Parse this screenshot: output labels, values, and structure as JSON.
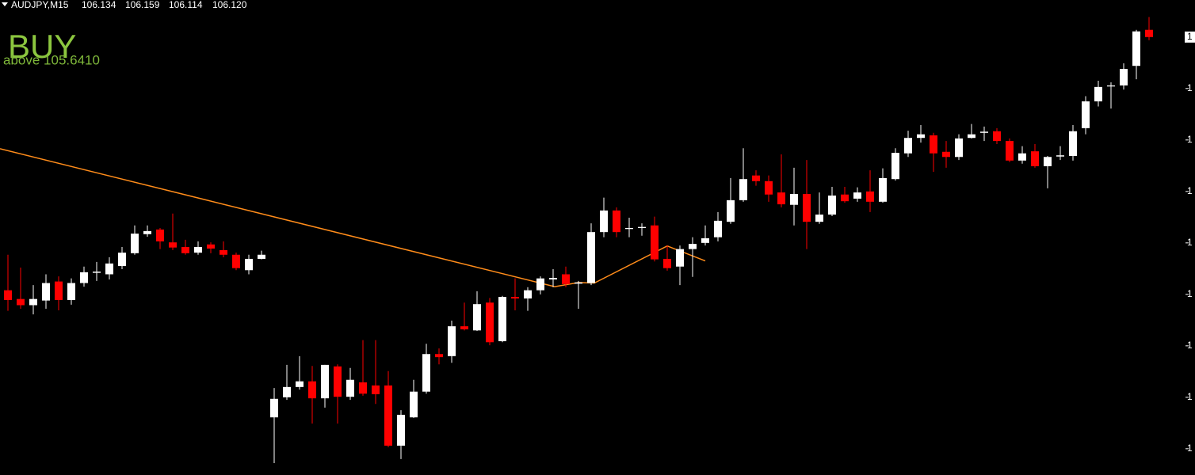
{
  "chart_data": {
    "type": "candlestick",
    "header": {
      "symbol": "AUDJPY,M15",
      "ohlc": [
        "106.134",
        "106.159",
        "106.114",
        "106.120"
      ]
    },
    "signal": {
      "text": "BUY",
      "color": "#8cc63f"
    },
    "annotation": {
      "text": "above 105.6410",
      "color": "#7fb83a"
    },
    "colors": {
      "up": "#ffffff",
      "down": "#ff0000",
      "doji": "#ffffff"
    },
    "open": [
      105.628,
      105.611,
      105.599,
      105.608,
      105.645,
      105.609,
      105.642,
      105.663,
      105.659,
      105.675,
      105.7,
      105.737,
      105.746,
      105.721,
      105.712,
      105.701,
      105.717,
      105.706,
      105.697,
      105.667,
      105.689,
      105.381,
      105.42,
      105.44,
      105.451,
      105.418,
      105.48,
      105.421,
      105.449,
      105.443,
      105.443,
      105.326,
      105.381,
      105.431,
      105.504,
      105.5,
      105.558,
      105.55,
      105.604,
      105.529,
      105.615,
      105.612,
      105.628,
      105.649,
      105.659,
      105.642,
      105.642,
      105.741,
      105.783,
      105.747,
      105.749,
      105.754,
      105.689,
      105.674,
      105.708,
      105.72,
      105.731,
      105.761,
      105.803,
      105.851,
      105.84,
      105.818,
      105.794,
      105.815,
      105.761,
      105.775,
      105.814,
      105.806,
      105.82,
      105.8,
      105.844,
      105.894,
      105.924,
      105.929,
      105.897,
      105.887,
      105.924,
      105.935,
      105.937,
      105.918,
      105.88,
      105.898,
      105.869,
      105.889,
      105.889,
      105.943,
      105.995,
      106.024,
      106.026,
      106.064,
      106.134
    ],
    "high": [
      105.697,
      105.672,
      105.638,
      105.659,
      105.655,
      105.651,
      105.674,
      105.683,
      105.692,
      105.712,
      105.754,
      105.754,
      105.749,
      105.777,
      105.726,
      105.723,
      105.721,
      105.723,
      105.701,
      105.697,
      105.705,
      105.438,
      105.483,
      105.5,
      105.481,
      105.483,
      105.484,
      105.477,
      105.531,
      105.531,
      105.471,
      105.395,
      105.454,
      105.524,
      105.515,
      105.569,
      105.604,
      105.626,
      105.613,
      105.617,
      105.651,
      105.634,
      105.655,
      105.669,
      105.674,
      105.646,
      105.758,
      105.808,
      105.789,
      105.769,
      105.758,
      105.771,
      105.715,
      105.715,
      105.731,
      105.754,
      105.78,
      105.846,
      105.904,
      105.861,
      105.851,
      105.892,
      105.866,
      105.881,
      105.818,
      105.829,
      105.829,
      105.828,
      105.861,
      105.865,
      105.904,
      105.938,
      105.949,
      105.934,
      105.918,
      105.931,
      105.951,
      105.946,
      105.943,
      105.923,
      105.908,
      105.912,
      105.889,
      105.908,
      105.949,
      106.005,
      106.035,
      106.032,
      106.069,
      106.134,
      106.159
    ],
    "low": [
      105.588,
      105.592,
      105.581,
      105.592,
      105.589,
      105.6,
      105.635,
      105.646,
      105.649,
      105.669,
      105.697,
      105.732,
      105.708,
      105.706,
      105.697,
      105.697,
      105.7,
      105.692,
      105.667,
      105.659,
      105.688,
      105.292,
      105.415,
      105.435,
      105.369,
      105.4,
      105.369,
      105.415,
      105.423,
      105.407,
      105.323,
      105.3,
      105.38,
      105.427,
      105.484,
      105.487,
      105.55,
      105.549,
      105.521,
      105.527,
      105.589,
      105.588,
      105.62,
      105.634,
      105.634,
      105.592,
      105.638,
      105.731,
      105.731,
      105.731,
      105.734,
      105.684,
      105.666,
      105.638,
      105.654,
      105.715,
      105.723,
      105.757,
      105.8,
      105.831,
      105.8,
      105.789,
      105.754,
      105.708,
      105.757,
      105.772,
      105.798,
      105.8,
      105.78,
      105.798,
      105.841,
      105.887,
      105.915,
      105.858,
      105.866,
      105.881,
      105.923,
      105.918,
      105.912,
      105.877,
      105.874,
      105.866,
      105.826,
      105.881,
      105.88,
      105.931,
      105.985,
      105.981,
      106.018,
      106.038,
      106.114
    ],
    "close": [
      105.609,
      105.599,
      105.611,
      105.642,
      105.609,
      105.642,
      105.663,
      105.663,
      105.68,
      105.701,
      105.738,
      105.743,
      105.723,
      105.711,
      105.7,
      105.712,
      105.709,
      105.697,
      105.671,
      105.689,
      105.697,
      105.417,
      105.44,
      105.451,
      105.418,
      105.483,
      105.421,
      105.454,
      105.427,
      105.426,
      105.326,
      105.386,
      105.431,
      105.504,
      105.498,
      105.558,
      105.552,
      105.601,
      105.527,
      105.615,
      105.612,
      105.628,
      105.651,
      105.652,
      105.64,
      105.642,
      105.741,
      105.783,
      105.741,
      105.749,
      105.751,
      105.688,
      105.671,
      105.708,
      105.718,
      105.729,
      105.763,
      105.803,
      105.844,
      105.84,
      105.814,
      105.795,
      105.815,
      105.761,
      105.775,
      105.812,
      105.801,
      105.818,
      105.8,
      105.846,
      105.895,
      105.924,
      105.931,
      105.894,
      105.887,
      105.923,
      105.931,
      105.935,
      105.918,
      105.88,
      105.894,
      105.869,
      105.887,
      105.889,
      105.937,
      105.995,
      106.023,
      106.026,
      106.058,
      106.131,
      106.12
    ],
    "trend_line": {
      "color": "#ff8c1a",
      "x": [
        -0.625,
        43.125,
        45,
        46.25,
        52,
        55
      ],
      "y": [
        105.903,
        105.635,
        105.643,
        105.642,
        105.714,
        105.685
      ]
    },
    "ylim": [
      105.269,
      106.192
    ],
    "yticks": [
      {
        "value": 106.12,
        "label": "1"
      },
      {
        "value": 106.02,
        "label": "1"
      },
      {
        "value": 105.92,
        "label": "1"
      },
      {
        "value": 105.82,
        "label": "1"
      },
      {
        "value": 105.72,
        "label": "1"
      },
      {
        "value": 105.62,
        "label": "1"
      },
      {
        "value": 105.52,
        "label": "1"
      },
      {
        "value": 105.42,
        "label": "1"
      },
      {
        "value": 105.32,
        "label": "1"
      }
    ],
    "price_label": {
      "value": 106.12,
      "label": "1"
    }
  }
}
